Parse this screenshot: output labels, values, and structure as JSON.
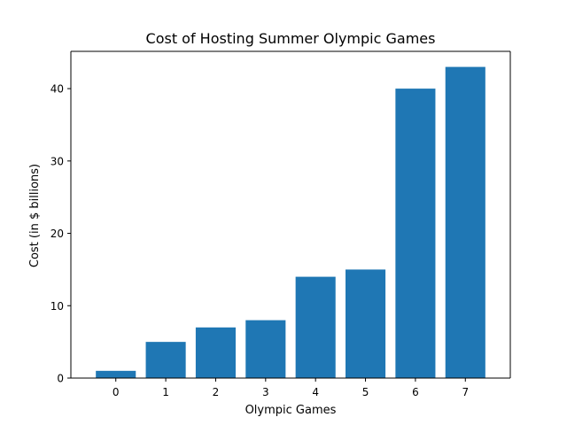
{
  "chart_data": {
    "type": "bar",
    "title": "Cost of Hosting Summer Olympic Games",
    "xlabel": "Olympic Games",
    "ylabel": "Cost (in $ billions)",
    "categories": [
      "0",
      "1",
      "2",
      "3",
      "4",
      "5",
      "6",
      "7"
    ],
    "values": [
      1,
      5,
      7,
      8,
      14,
      15,
      40,
      43
    ],
    "ylim": [
      0,
      45.15
    ],
    "yticks": [
      0,
      10,
      20,
      30,
      40
    ],
    "grid": false,
    "legend": "none",
    "bar_color": "#1f77b4"
  }
}
